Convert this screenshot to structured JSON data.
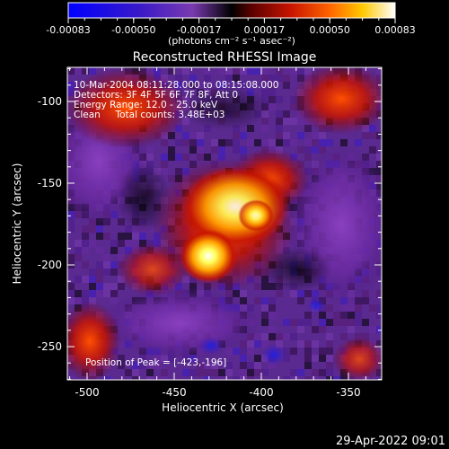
{
  "colorbar": {
    "ticks": [
      "-0.00083",
      "-0.00050",
      "-0.00017",
      "0.00017",
      "0.00050",
      "0.00083"
    ],
    "unit_label": "(photons cm⁻² s⁻¹ asec⁻²)"
  },
  "plot": {
    "title": "Reconstructed RHESSI Image",
    "xlabel": "Heliocentric X (arcsec)",
    "ylabel": "Heliocentric Y (arcsec)",
    "x_ticks": [
      "-500",
      "-450",
      "-400",
      "-350"
    ],
    "y_ticks": [
      "-100",
      "-150",
      "-200",
      "-250"
    ],
    "info_lines": [
      "10-Mar-2004 08:11:28.000 to 08:15:08.000",
      "Detectors: 3F 4F 5F 6F 7F 8F, Att 0",
      "Energy Range: 12.0 - 25.0 keV",
      "Clean     Total counts: 3.48E+03"
    ],
    "peak_label": "Position of Peak = [-423,-196]"
  },
  "footer": {
    "date": "29-Apr-2022 09:01"
  },
  "colors": {
    "background": "#000000",
    "text": "#ffffff"
  }
}
